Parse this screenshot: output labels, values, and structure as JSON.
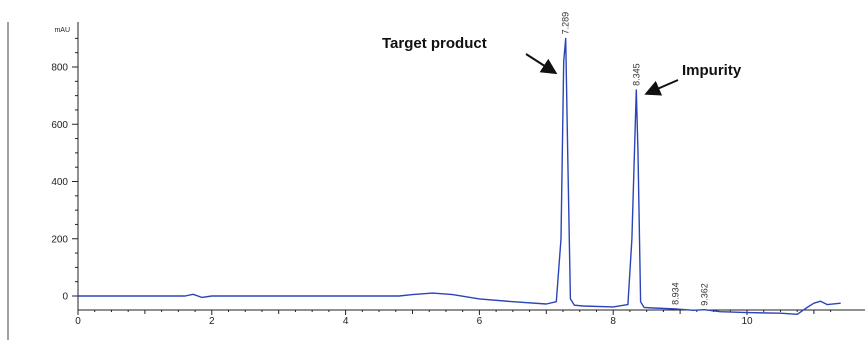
{
  "chart_data": {
    "type": "line",
    "title": "",
    "xlabel": "",
    "ylabel": "mAU",
    "xlim": [
      0,
      11.4
    ],
    "ylim": [
      -100,
      960
    ],
    "y_ticks": [
      "0",
      "200",
      "400",
      "600",
      "800"
    ],
    "x_ticks": [
      "0",
      "2",
      "4",
      "6",
      "8",
      "10"
    ],
    "grid": false,
    "legend": "none",
    "line_color": "#2b45b8",
    "series": [
      {
        "values_x": [
          0,
          1.6,
          1.72,
          1.85,
          2.0,
          3.0,
          4.0,
          4.8,
          5.0,
          5.3,
          5.6,
          6.0,
          6.5,
          7.0,
          7.15,
          7.22,
          7.26,
          7.29,
          7.32,
          7.36,
          7.42,
          7.55,
          8.0,
          8.22,
          8.28,
          8.32,
          8.345,
          8.37,
          8.41,
          8.46,
          8.6,
          8.934,
          9.2,
          9.362,
          9.6,
          10.0,
          10.5,
          10.75,
          10.9,
          11.0,
          11.1,
          11.2,
          11.4
        ],
        "values_y": [
          0,
          0,
          6,
          -5,
          0,
          0,
          0,
          0,
          5,
          10,
          5,
          -10,
          -20,
          -28,
          -20,
          200,
          820,
          900,
          500,
          -10,
          -32,
          -35,
          -38,
          -30,
          200,
          520,
          720,
          500,
          -20,
          -40,
          -42,
          -45,
          -50,
          -48,
          -55,
          -58,
          -60,
          -64,
          -40,
          -25,
          -18,
          -30,
          -25
        ]
      }
    ],
    "peak_labels": [
      {
        "text": "7.289",
        "x": 7.289,
        "y": 900
      },
      {
        "text": "8.345",
        "x": 8.345,
        "y": 720
      },
      {
        "text": "8.934",
        "x": 8.934,
        "y": -45
      },
      {
        "text": "9.362",
        "x": 9.362,
        "y": -48
      }
    ],
    "annotations": [
      {
        "text": "Target product",
        "target_x": 7.25,
        "target_y": 770
      },
      {
        "text": "Impurity",
        "target_x": 8.38,
        "target_y": 700
      }
    ]
  }
}
